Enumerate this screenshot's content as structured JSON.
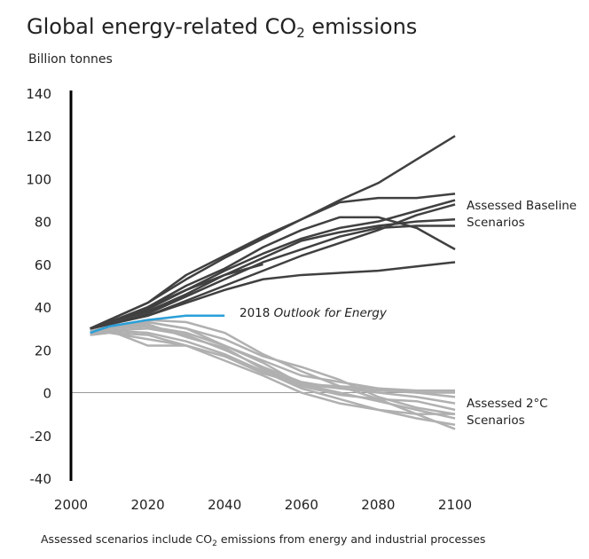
{
  "chart_data": {
    "type": "line",
    "title_prefix": "Global energy-related CO",
    "title_sub": "2",
    "title_suffix": " emissions",
    "ylabel": "Billion tonnes",
    "xlim": [
      2000,
      2100
    ],
    "ylim": [
      -40,
      140
    ],
    "xticks": [
      "2000",
      "2020",
      "2040",
      "2060",
      "2080",
      "2100"
    ],
    "yticks": [
      "140",
      "120",
      "100",
      "80",
      "60",
      "40",
      "20",
      "0",
      "-20",
      "-40"
    ],
    "x": [
      2005,
      2010,
      2020,
      2030,
      2040,
      2050,
      2060,
      2070,
      2080,
      2090,
      2100
    ],
    "baseline_label": [
      "Assessed Baseline",
      "Scenarios"
    ],
    "twoc_label": [
      "Assessed 2°C",
      "Scenarios"
    ],
    "outlook_label_year": "2018 ",
    "outlook_label_name": "Outlook for Energy",
    "footnote_prefix": "Assessed scenarios include CO",
    "footnote_sub": "2",
    "footnote_suffix": " emissions from energy and industrial processes",
    "colors": {
      "baseline": "#404040",
      "twoc": "#b0b0b0",
      "outlook": "#2a9fd8",
      "axis": "#000000",
      "zero_line": "#999999"
    },
    "baseline_series": [
      [
        30,
        34,
        42,
        55,
        64,
        73,
        81,
        90,
        98,
        109,
        120
      ],
      [
        30,
        34,
        42,
        53,
        63,
        72,
        81,
        89,
        91,
        91,
        93
      ],
      [
        30,
        33,
        40,
        50,
        58,
        68,
        76,
        82,
        82,
        77,
        67
      ],
      [
        30,
        33,
        39,
        48,
        57,
        65,
        72,
        77,
        80,
        85,
        90
      ],
      [
        30,
        33,
        38,
        46,
        55,
        63,
        71,
        75,
        78,
        80,
        81
      ],
      [
        30,
        32,
        37,
        45,
        53,
        61,
        67,
        73,
        77,
        78,
        78
      ],
      [
        30,
        32,
        36,
        43,
        50,
        57,
        64,
        70,
        76,
        83,
        88
      ],
      [
        30,
        32,
        36,
        42,
        48,
        53,
        55,
        56,
        57,
        59,
        61
      ],
      [
        30,
        33,
        40,
        48,
        55,
        60
      ]
    ],
    "twoc_series": [
      [
        30,
        31,
        34,
        33,
        28,
        18,
        10,
        3,
        -3,
        -10,
        -17
      ],
      [
        30,
        31,
        33,
        30,
        25,
        17,
        12,
        6,
        -2,
        -7,
        -10
      ],
      [
        29,
        30,
        31,
        28,
        22,
        14,
        4,
        0,
        -4,
        -8,
        -12
      ],
      [
        28,
        29,
        30,
        27,
        20,
        12,
        5,
        2,
        0,
        -2,
        -5
      ],
      [
        28,
        29,
        28,
        24,
        18,
        10,
        3,
        -1,
        -3,
        -4,
        -8
      ],
      [
        27,
        28,
        27,
        22,
        17,
        10,
        2,
        -3,
        -8,
        -10,
        -10
      ],
      [
        28,
        30,
        33,
        30,
        22,
        15,
        8,
        5,
        2,
        1,
        1
      ],
      [
        27,
        28,
        25,
        22,
        15,
        8,
        0,
        -5,
        -8,
        -12,
        -15
      ],
      [
        28,
        29,
        22,
        22,
        17,
        9,
        4,
        2,
        1,
        0,
        0
      ],
      [
        29,
        30,
        32,
        26,
        21,
        11,
        4,
        3,
        2,
        0,
        -2
      ]
    ],
    "outlook_series": [
      28,
      31,
      34,
      36,
      36
    ]
  }
}
